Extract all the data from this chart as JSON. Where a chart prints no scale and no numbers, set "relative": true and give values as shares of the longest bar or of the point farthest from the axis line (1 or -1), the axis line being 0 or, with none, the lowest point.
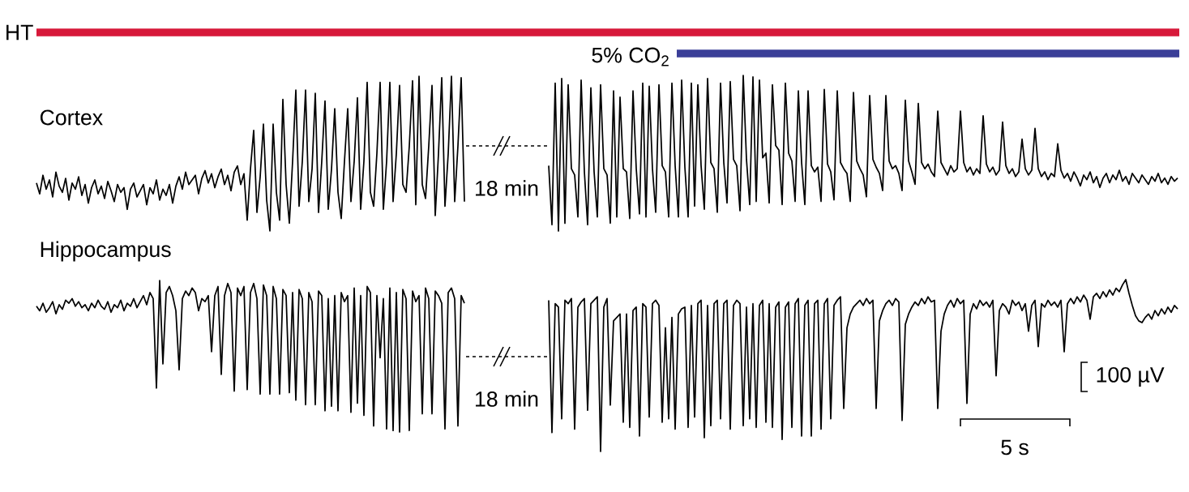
{
  "chart_data": [
    {
      "type": "line",
      "relative": true,
      "categories": [
        null,
        null,
        null,
        null,
        null,
        null,
        null,
        null,
        null,
        null,
        null,
        null,
        null,
        null,
        null,
        null,
        null,
        null,
        null,
        null,
        null,
        null,
        null,
        null,
        null,
        null,
        null,
        null,
        null,
        null,
        null,
        null,
        null,
        null,
        null,
        null,
        null,
        null,
        null,
        null,
        null,
        null,
        null,
        null,
        null,
        null,
        null,
        null,
        null,
        null,
        null,
        null,
        null,
        null,
        null,
        null,
        null,
        null,
        null,
        null,
        null,
        null,
        null,
        null,
        null,
        null,
        null,
        null,
        null,
        null,
        null,
        null,
        null,
        null,
        null,
        null,
        null,
        null,
        null,
        null,
        null,
        null,
        null,
        null,
        null,
        null,
        null,
        null,
        null,
        null,
        null,
        null,
        null,
        null,
        null,
        null,
        null,
        null,
        null,
        null,
        null,
        null,
        null,
        null,
        null,
        null,
        null,
        null,
        null,
        null,
        null,
        null,
        null,
        null,
        null,
        null,
        null,
        null,
        null,
        null,
        null,
        null,
        null,
        null,
        null,
        null,
        null,
        null,
        null,
        null,
        null,
        null,
        null
      ],
      "series": [
        {
          "name": "Cortex",
          "color": "#000000",
          "values": [
            0.31,
            0.24,
            0.36,
            0.27,
            0.33,
            0.22,
            0.38,
            0.29,
            0.25,
            0.34,
            0.2,
            0.31,
            0.27,
            0.35,
            0.23,
            0.3,
            0.18,
            0.28,
            0.33,
            0.24,
            0.29,
            0.21,
            0.32,
            0.26,
            0.19,
            0.3,
            0.25,
            0.28,
            0.14,
            0.27,
            0.31,
            0.22,
            0.26,
            0.3,
            0.17,
            0.28,
            0.24,
            0.33,
            0.2,
            0.27,
            0.23,
            0.3,
            0.18,
            0.29,
            0.35,
            0.27,
            0.38,
            0.3,
            0.33,
            0.36,
            0.24,
            0.34,
            0.39,
            0.31,
            0.37,
            0.28,
            0.35,
            0.4,
            0.3,
            0.36,
            0.26,
            0.38,
            0.42,
            0.3,
            0.37,
            0.07,
            0.4,
            0.65,
            0.12,
            0.35,
            0.69,
            0.2,
            0.0,
            0.69,
            0.25,
            0.07,
            0.85,
            0.3,
            0.05,
            0.45,
            0.91,
            0.16,
            0.45,
            0.91,
            0.19,
            0.4,
            0.89,
            0.12,
            0.45,
            0.84,
            0.14,
            0.4,
            0.79,
            0.25,
            0.08,
            0.45,
            0.79,
            0.19,
            0.45,
            0.86,
            0.14,
            0.45,
            0.96,
            0.25,
            0.16,
            0.5,
            0.96,
            0.14,
            0.45,
            0.96,
            0.19,
            0.5,
            0.94,
            0.3,
            0.25,
            0.55,
            0.97,
            0.17,
            1.0,
            0.3,
            0.21,
            0.55,
            0.94,
            0.1,
            0.5,
            0.99,
            0.16,
            0.5,
            1.0,
            0.19,
            0.55,
            0.99,
            0.19
          ]
        }
      ],
      "annotations": [
        "HT"
      ]
    },
    {
      "type": "line",
      "relative": true,
      "categories": [
        null,
        null,
        null,
        null,
        null,
        null,
        null,
        null,
        null,
        null,
        null,
        null,
        null,
        null,
        null,
        null,
        null,
        null,
        null,
        null,
        null,
        null,
        null,
        null,
        null,
        null,
        null,
        null,
        null,
        null,
        null,
        null,
        null,
        null,
        null,
        null,
        null,
        null,
        null,
        null,
        null,
        null,
        null,
        null,
        null,
        null,
        null,
        null,
        null,
        null,
        null,
        null,
        null,
        null,
        null,
        null,
        null,
        null,
        null,
        null,
        null,
        null,
        null,
        null,
        null,
        null,
        null,
        null,
        null,
        null,
        null,
        null,
        null,
        null,
        null,
        null,
        null,
        null,
        null,
        null,
        null,
        null,
        null,
        null,
        null,
        null,
        null,
        null,
        null,
        null,
        null,
        null,
        null,
        null,
        null,
        null,
        null,
        null,
        null,
        null,
        null,
        null,
        null,
        null,
        null,
        null,
        null,
        null,
        null,
        null,
        null,
        null,
        null,
        null,
        null,
        null,
        null,
        null,
        null,
        null,
        null,
        null,
        null,
        null,
        null,
        null,
        null,
        null,
        null,
        null,
        null,
        null,
        null,
        null,
        null,
        null,
        null,
        null,
        null,
        null,
        null,
        null,
        null,
        null,
        null,
        null,
        null,
        null,
        null,
        null,
        null,
        null,
        null,
        null,
        null,
        null,
        null,
        null,
        null,
        null,
        null,
        null,
        null,
        null,
        null,
        null,
        null,
        null,
        null,
        null,
        null,
        null,
        null,
        null,
        null,
        null,
        null,
        null,
        null,
        null,
        null,
        null,
        null,
        null,
        null,
        null,
        null,
        null,
        null,
        null,
        null,
        null,
        null,
        null,
        null
      ],
      "series": [
        {
          "color": "#000000",
          "values": [
            0.42,
            0.04,
            0.95,
            0.0,
            0.98,
            0.05,
            0.94,
            0.4,
            0.36,
            0.09,
            0.97,
            0.38,
            0.04,
            0.92,
            0.38,
            0.09,
            0.94,
            0.4,
            0.36,
            0.05,
            0.9,
            0.09,
            0.86,
            0.4,
            0.38,
            0.08,
            0.9,
            0.4,
            0.11,
            0.95,
            0.09,
            0.93,
            0.4,
            0.12,
            0.94,
            0.42,
            0.38,
            0.09,
            0.95,
            0.42,
            0.09,
            0.97,
            0.41,
            0.09,
            0.95,
            0.16,
            0.94,
            0.42,
            0.14,
            0.98,
            0.44,
            0.4,
            0.12,
            0.95,
            0.44,
            0.18,
            0.96,
            0.46,
            0.42,
            0.13,
            1.0,
            0.46,
            0.17,
            0.99,
            0.19,
            0.97,
            0.47,
            0.5,
            0.18,
            0.94,
            0.55,
            0.52,
            0.17,
            0.95,
            0.5,
            0.45,
            0.19,
            0.9,
            0.44,
            0.17,
            0.9,
            0.42,
            0.38,
            0.41,
            0.19,
            0.91,
            0.43,
            0.38,
            0.2,
            0.9,
            0.44,
            0.4,
            0.37,
            0.19,
            0.89,
            0.45,
            0.4,
            0.36,
            0.22,
            0.87,
            0.46,
            0.41,
            0.37,
            0.26,
            0.87,
            0.45,
            0.4,
            0.42,
            0.37,
            0.26,
            0.84,
            0.45,
            0.38,
            0.3,
            0.82,
            0.44,
            0.4,
            0.43,
            0.38,
            0.35,
            0.77,
            0.44,
            0.4,
            0.36,
            0.42,
            0.38,
            0.4,
            0.77,
            0.44,
            0.38,
            0.41,
            0.36,
            0.4,
            0.37,
            0.74,
            0.43,
            0.38,
            0.41,
            0.36,
            0.39,
            0.7,
            0.42,
            0.37,
            0.4,
            0.35,
            0.38,
            0.59,
            0.4,
            0.36,
            0.39,
            0.66,
            0.4,
            0.35,
            0.38,
            0.33,
            0.37,
            0.35,
            0.56,
            0.39,
            0.34,
            0.37,
            0.32,
            0.38,
            0.34,
            0.29,
            0.36,
            0.33,
            0.38,
            0.31,
            0.35,
            0.28,
            0.34,
            0.37,
            0.31,
            0.36,
            0.33,
            0.39,
            0.32,
            0.35,
            0.3,
            0.37,
            0.34,
            0.31,
            0.36,
            0.33,
            0.3,
            0.35,
            0.32,
            0.37,
            0.31,
            0.34,
            0.3,
            0.35,
            0.32,
            0.34
          ]
        }
      ],
      "annotations": [
        "5% CO$_{2}$",
        "18 min"
      ]
    },
    {
      "type": "line",
      "relative": true,
      "categories": [
        null,
        null,
        null,
        null,
        null,
        null,
        null,
        null,
        null,
        null,
        null,
        null,
        null,
        null,
        null,
        null,
        null,
        null,
        null,
        null,
        null,
        null,
        null,
        null,
        null,
        null,
        null,
        null,
        null,
        null,
        null,
        null,
        null,
        null,
        null,
        null,
        null,
        null,
        null,
        null,
        null,
        null,
        null,
        null,
        null,
        null,
        null,
        null,
        null,
        null,
        null,
        null,
        null,
        null,
        null,
        null,
        null,
        null,
        null,
        null,
        null,
        null,
        null,
        null,
        null,
        null,
        null,
        null,
        null,
        null,
        null,
        null,
        null,
        null,
        null,
        null,
        null,
        null,
        null,
        null,
        null,
        null,
        null,
        null,
        null,
        null,
        null,
        null,
        null,
        null,
        null,
        null,
        null,
        null,
        null,
        null,
        null,
        null,
        null,
        null,
        null,
        null,
        null,
        null,
        null,
        null,
        null,
        null,
        null,
        null,
        null,
        null,
        null,
        null,
        null,
        null,
        null,
        null,
        null,
        null,
        null,
        null,
        null,
        null,
        null,
        null,
        null,
        null,
        null,
        null,
        null,
        null,
        null
      ],
      "series": [
        {
          "name": "Hippocampus",
          "color": "#000000",
          "values": [
            0.83,
            0.8,
            0.85,
            0.79,
            0.82,
            0.86,
            0.78,
            0.84,
            0.81,
            0.87,
            0.85,
            0.88,
            0.83,
            0.86,
            0.82,
            0.84,
            0.8,
            0.85,
            0.82,
            0.87,
            0.83,
            0.81,
            0.86,
            0.79,
            0.84,
            0.82,
            0.87,
            0.8,
            0.85,
            0.83,
            0.88,
            0.82,
            0.86,
            0.9,
            0.84,
            0.92,
            0.88,
            0.29,
            1.0,
            0.45,
            0.92,
            0.96,
            0.9,
            0.8,
            0.41,
            0.88,
            0.93,
            0.9,
            0.95,
            0.92,
            0.8,
            0.88,
            0.86,
            0.9,
            0.53,
            0.9,
            0.96,
            0.38,
            0.9,
            0.98,
            0.92,
            0.27,
            0.95,
            0.9,
            0.96,
            0.28,
            0.92,
            0.98,
            0.88,
            0.25,
            0.97,
            0.9,
            0.25,
            0.96,
            0.88,
            0.25,
            0.94,
            0.9,
            0.26,
            0.92,
            0.21,
            0.94,
            0.88,
            0.18,
            0.92,
            0.86,
            0.18,
            0.93,
            0.9,
            0.14,
            0.88,
            0.17,
            0.9,
            0.14,
            0.92,
            0.86,
            0.9,
            0.13,
            0.95,
            0.19,
            0.9,
            0.11,
            0.96,
            0.92,
            0.04,
            0.9,
            0.49,
            0.88,
            0.02,
            0.95,
            0.01,
            0.92,
            0.0,
            0.94,
            0.88,
            0.01,
            0.93,
            0.86,
            0.9,
            0.12,
            0.95,
            0.88,
            0.12,
            0.93,
            0.9,
            0.85,
            0.02,
            0.92,
            0.95,
            0.88,
            0.04,
            0.9,
            0.85
          ]
        }
      ]
    },
    {
      "type": "line",
      "relative": true,
      "categories": [
        null,
        null,
        null,
        null,
        null,
        null,
        null,
        null,
        null,
        null,
        null,
        null,
        null,
        null,
        null,
        null,
        null,
        null,
        null,
        null,
        null,
        null,
        null,
        null,
        null,
        null,
        null,
        null,
        null,
        null,
        null,
        null,
        null,
        null,
        null,
        null,
        null,
        null,
        null,
        null,
        null,
        null,
        null,
        null,
        null,
        null,
        null,
        null,
        null,
        null,
        null,
        null,
        null,
        null,
        null,
        null,
        null,
        null,
        null,
        null,
        null,
        null,
        null,
        null,
        null,
        null,
        null,
        null,
        null,
        null,
        null,
        null,
        null,
        null,
        null,
        null,
        null,
        null,
        null,
        null,
        null,
        null,
        null,
        null,
        null,
        null,
        null,
        null,
        null,
        null,
        null,
        null,
        null,
        null,
        null,
        null,
        null,
        null,
        null,
        null,
        null,
        null,
        null,
        null,
        null,
        null,
        null,
        null,
        null,
        null,
        null,
        null,
        null,
        null,
        null,
        null,
        null,
        null,
        null,
        null,
        null,
        null,
        null,
        null,
        null,
        null,
        null,
        null,
        null,
        null,
        null,
        null,
        null,
        null,
        null,
        null,
        null,
        null,
        null,
        null,
        null,
        null,
        null,
        null,
        null,
        null,
        null,
        null,
        null,
        null,
        null,
        null,
        null,
        null,
        null,
        null,
        null,
        null,
        null,
        null,
        null,
        null,
        null,
        null,
        null,
        null,
        null,
        null,
        null,
        null,
        null,
        null,
        null,
        null,
        null,
        null,
        null,
        null,
        null,
        null,
        null,
        null,
        null,
        null,
        null,
        null,
        null,
        null,
        null,
        null,
        null,
        null,
        null,
        null,
        null
      ],
      "series": [
        {
          "color": "#000000",
          "values": [
            0.88,
            0.11,
            0.86,
            0.84,
            0.19,
            0.88,
            0.86,
            0.89,
            0.13,
            0.84,
            0.87,
            0.89,
            0.24,
            0.86,
            0.88,
            0.9,
            0.0,
            0.84,
            0.89,
            0.27,
            0.76,
            0.78,
            0.8,
            0.17,
            0.8,
            0.14,
            0.82,
            0.84,
            0.09,
            0.86,
            0.84,
            0.2,
            0.86,
            0.88,
            0.85,
            0.17,
            0.72,
            0.19,
            0.78,
            0.13,
            0.8,
            0.83,
            0.84,
            0.14,
            0.85,
            0.2,
            0.86,
            0.88,
            0.08,
            0.85,
            0.15,
            0.86,
            0.88,
            0.19,
            0.86,
            0.88,
            0.13,
            0.85,
            0.88,
            0.86,
            0.15,
            0.84,
            0.19,
            0.86,
            0.14,
            0.85,
            0.88,
            0.17,
            0.86,
            0.14,
            0.84,
            0.87,
            0.07,
            0.84,
            0.87,
            0.14,
            0.86,
            0.89,
            0.09,
            0.85,
            0.88,
            0.09,
            0.86,
            0.88,
            0.13,
            0.86,
            0.89,
            0.19,
            0.85,
            0.88,
            0.9,
            0.25,
            0.72,
            0.8,
            0.84,
            0.86,
            0.88,
            0.85,
            0.89,
            0.86,
            0.88,
            0.25,
            0.76,
            0.82,
            0.86,
            0.88,
            0.85,
            0.89,
            0.87,
            0.18,
            0.74,
            0.8,
            0.84,
            0.87,
            0.85,
            0.89,
            0.86,
            0.9,
            0.87,
            0.88,
            0.25,
            0.7,
            0.8,
            0.85,
            0.88,
            0.84,
            0.89,
            0.86,
            0.88,
            0.28,
            0.8,
            0.86,
            0.83,
            0.88,
            0.85,
            0.87,
            0.84,
            0.88,
            0.44,
            0.82,
            0.86,
            0.84,
            0.8,
            0.88,
            0.85,
            0.87,
            0.82,
            0.86,
            0.7,
            0.85,
            0.88,
            0.61,
            0.86,
            0.84,
            0.88,
            0.85,
            0.87,
            0.84,
            0.88,
            0.58,
            0.86,
            0.89,
            0.86,
            0.9,
            0.87,
            0.91,
            0.88,
            0.77,
            0.9,
            0.92,
            0.89,
            0.93,
            0.9,
            0.94,
            0.91,
            0.95,
            0.93,
            0.97,
            1.0,
            0.92,
            0.85,
            0.79,
            0.76,
            0.75,
            0.78,
            0.8,
            0.77,
            0.82,
            0.79,
            0.83,
            0.8,
            0.84,
            0.81,
            0.85,
            0.83
          ]
        }
      ],
      "annotations": [
        "18 min",
        "100 µV",
        "5 s"
      ]
    }
  ]
}
